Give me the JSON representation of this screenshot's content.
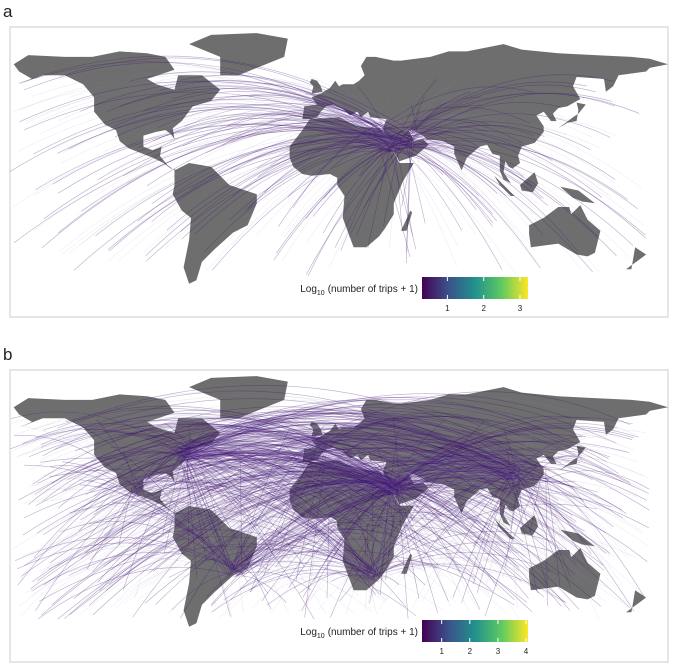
{
  "panels": [
    {
      "label": "a",
      "legend": {
        "title": {
          "base": "Log",
          "subscript": "10",
          "rest": "(number of trips + 1)"
        },
        "range": [
          0.3,
          3.22
        ],
        "ticks": [
          1,
          2,
          3
        ]
      }
    },
    {
      "label": "b",
      "legend": {
        "title": {
          "base": "Log",
          "subscript": "10",
          "rest": "(number of trips + 1)"
        },
        "range": [
          0.3,
          4.07
        ],
        "ticks": [
          1,
          2,
          3,
          4
        ]
      }
    }
  ]
}
